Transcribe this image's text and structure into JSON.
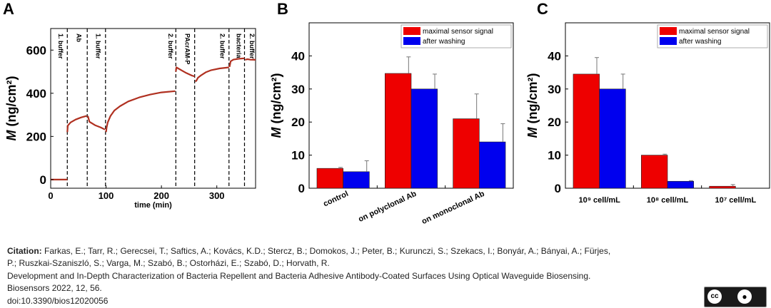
{
  "chart_data": [
    {
      "panel": "A",
      "type": "line",
      "xlabel": "time (min)",
      "ylabel": "M (ng/cm²)",
      "xlim": [
        0,
        370
      ],
      "ylim": [
        -40,
        700
      ],
      "xticks": [
        0,
        100,
        200,
        300
      ],
      "yticks": [
        0,
        200,
        400,
        600
      ],
      "color": "#b03020",
      "series": [
        {
          "x": [
            0,
            30
          ],
          "y": [
            0,
            0
          ]
        },
        {
          "x": [
            30,
            31,
            36,
            45,
            55,
            65
          ],
          "y": [
            220,
            250,
            265,
            278,
            288,
            295
          ]
        },
        {
          "x": [
            67,
            70,
            80,
            90,
            98
          ],
          "y": [
            295,
            268,
            252,
            242,
            232
          ]
        },
        {
          "x": [
            100,
            101,
            103,
            108,
            115,
            125,
            140,
            160,
            180,
            200,
            225
          ],
          "y": [
            220,
            240,
            265,
            295,
            320,
            340,
            362,
            381,
            394,
            404,
            410
          ]
        },
        {
          "x": [
            226,
            227,
            235,
            245,
            255,
            260
          ],
          "y": [
            500,
            520,
            508,
            494,
            482,
            478
          ]
        },
        {
          "x": [
            261,
            263,
            266,
            272,
            280,
            290,
            305,
            322
          ],
          "y": [
            455,
            458,
            472,
            484,
            497,
            507,
            515,
            520
          ]
        },
        {
          "x": [
            323,
            325,
            330,
            340,
            350
          ],
          "y": [
            522,
            548,
            556,
            560,
            562
          ]
        },
        {
          "x": [
            351,
            355,
            360,
            370
          ],
          "y": [
            555,
            558,
            556,
            555
          ]
        }
      ],
      "phase_lines": [
        30,
        66,
        99,
        226,
        260,
        322,
        350
      ],
      "phase_labels": [
        {
          "x": 14,
          "text": "1. buffer"
        },
        {
          "x": 47,
          "text": "Ab"
        },
        {
          "x": 82,
          "text": "1. buffer"
        },
        {
          "x": 213,
          "text": "2. buffer"
        },
        {
          "x": 243,
          "text": "PAcrAM-P"
        },
        {
          "x": 306,
          "text": "2. buffer"
        },
        {
          "x": 336,
          "text": "bacteria"
        },
        {
          "x": 360,
          "text": "2. buffer"
        }
      ]
    },
    {
      "panel": "B",
      "type": "bar",
      "ylabel": "M (ng/cm²)",
      "ylim": [
        0,
        50
      ],
      "yticks": [
        0,
        10,
        20,
        30,
        40
      ],
      "categories": [
        "control",
        "on polyclonal Ab",
        "on monoclonal Ab"
      ],
      "series": [
        {
          "name": "maximal sensor signal",
          "color": "#ee0000",
          "values": [
            6,
            34.7,
            21
          ],
          "errors": [
            0.3,
            5,
            7.5
          ]
        },
        {
          "name": "after washing",
          "color": "#0000ee",
          "values": [
            5,
            30,
            14
          ],
          "errors": [
            3.3,
            4.5,
            5.5
          ]
        }
      ]
    },
    {
      "panel": "C",
      "type": "bar",
      "ylabel": "M (ng/cm²)",
      "ylim": [
        0,
        50
      ],
      "yticks": [
        0,
        10,
        20,
        30,
        40
      ],
      "categories": [
        "10⁹ cell/mL",
        "10⁸ cell/mL",
        "10⁷ cell/mL"
      ],
      "series": [
        {
          "name": "maximal sensor signal",
          "color": "#ee0000",
          "values": [
            34.5,
            10,
            0.6
          ],
          "errors": [
            5,
            0.3,
            0.5
          ]
        },
        {
          "name": "after washing",
          "color": "#0000ee",
          "values": [
            30,
            2.1,
            0
          ],
          "errors": [
            4.5,
            0.2,
            0
          ]
        }
      ]
    }
  ],
  "citation": {
    "label": "Citation:",
    "authors_line1": "Farkas, E.; Tarr, R.; Gerecsei, T.; Saftics, A.; Kovács, K.D.; Stercz, B.; Domokos, J.; Peter, B.; Kurunczi, S.; Szekacs, I.; Bonyár, A.; Bányai, A.; Fürjes,",
    "authors_line2": "P.; Ruszkai-Szaniszló, S.; Varga, M.; Szabó, B.; Ostorházi, E.; Szabó, D.; Horvath, R.",
    "title": "Development and In-Depth Characterization of Bacteria Repellent and Bacteria Adhesive Antibody-Coated Surfaces Using Optical Waveguide Biosensing.",
    "journal": "Biosensors 2022, 12, 56.",
    "doi": "doi:10.3390/bios12020056"
  },
  "license_badge": {
    "cc": "cc",
    "by": "BY"
  }
}
